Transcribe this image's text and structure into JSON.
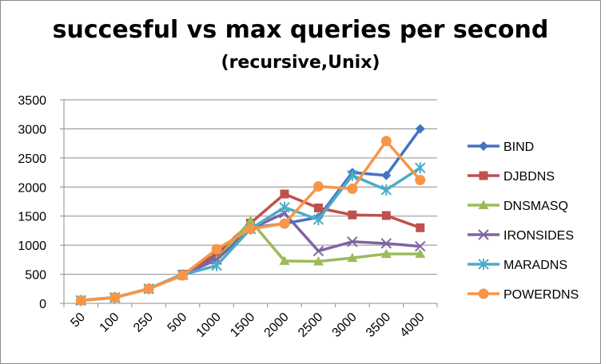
{
  "chart_data": {
    "type": "line",
    "title": "succesful vs max queries per second",
    "subtitle": "(recursive,Unix)",
    "xlabel": "",
    "ylabel": "",
    "categories": [
      "50",
      "100",
      "250",
      "500",
      "1000",
      "1500",
      "2000",
      "2500",
      "3000",
      "3500",
      "4000"
    ],
    "ylim": [
      0,
      3500
    ],
    "yticks": [
      0,
      500,
      1000,
      1500,
      2000,
      2500,
      3000,
      3500
    ],
    "grid": true,
    "legend_position": "right",
    "series": [
      {
        "name": "BIND",
        "color": "#4472C4",
        "marker": "diamond",
        "values": [
          50,
          100,
          250,
          500,
          800,
          1300,
          1370,
          1480,
          2250,
          2200,
          3000
        ]
      },
      {
        "name": "DJBDNS",
        "color": "#C0504D",
        "marker": "square",
        "values": [
          50,
          100,
          250,
          500,
          850,
          1380,
          1880,
          1640,
          1520,
          1510,
          1300
        ]
      },
      {
        "name": "DNSMASQ",
        "color": "#9BBB59",
        "marker": "triangle",
        "values": [
          50,
          100,
          250,
          490,
          750,
          1420,
          730,
          720,
          780,
          850,
          850
        ]
      },
      {
        "name": "IRONSIDES",
        "color": "#8064A2",
        "marker": "x",
        "values": [
          50,
          100,
          250,
          490,
          750,
          1280,
          1550,
          900,
          1060,
          1030,
          980
        ]
      },
      {
        "name": "MARADNS",
        "color": "#4BACC6",
        "marker": "star",
        "values": [
          50,
          100,
          250,
          490,
          650,
          1280,
          1650,
          1440,
          2200,
          1950,
          2330
        ]
      },
      {
        "name": "POWERDNS",
        "color": "#F79646",
        "marker": "circle",
        "values": [
          50,
          100,
          250,
          480,
          930,
          1280,
          1370,
          2010,
          1970,
          2790,
          2120
        ]
      }
    ]
  }
}
